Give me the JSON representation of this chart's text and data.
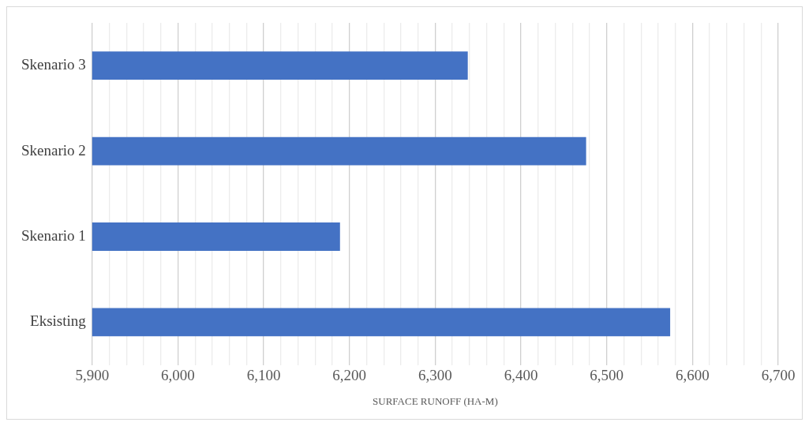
{
  "chart_data": {
    "type": "bar",
    "orientation": "horizontal",
    "categories": [
      "Skenario 3",
      "Skenario 2",
      "Skenario 1",
      "Eksisting"
    ],
    "values": [
      6338,
      6476,
      6189,
      6574
    ],
    "color": "#4472c4",
    "xlabel": "SURFACE RUNOFF (HA-M)",
    "xlim": [
      5900,
      6700
    ],
    "xticks": [
      {
        "value": 5900,
        "label": "5,900"
      },
      {
        "value": 5920,
        "label": null
      },
      {
        "value": 5940,
        "label": null
      },
      {
        "value": 5960,
        "label": null
      },
      {
        "value": 5980,
        "label": null
      },
      {
        "value": 6000,
        "label": "6,000"
      },
      {
        "value": 6020,
        "label": null
      },
      {
        "value": 6040,
        "label": null
      },
      {
        "value": 6060,
        "label": null
      },
      {
        "value": 6080,
        "label": null
      },
      {
        "value": 6100,
        "label": "6,100"
      },
      {
        "value": 6120,
        "label": null
      },
      {
        "value": 6140,
        "label": null
      },
      {
        "value": 6160,
        "label": null
      },
      {
        "value": 6180,
        "label": null
      },
      {
        "value": 6200,
        "label": "6,200"
      },
      {
        "value": 6220,
        "label": null
      },
      {
        "value": 6240,
        "label": null
      },
      {
        "value": 6260,
        "label": null
      },
      {
        "value": 6280,
        "label": null
      },
      {
        "value": 6300,
        "label": "6,300"
      },
      {
        "value": 6320,
        "label": null
      },
      {
        "value": 6340,
        "label": null
      },
      {
        "value": 6360,
        "label": null
      },
      {
        "value": 6380,
        "label": null
      },
      {
        "value": 6400,
        "label": "6,400"
      },
      {
        "value": 6420,
        "label": null
      },
      {
        "value": 6440,
        "label": null
      },
      {
        "value": 6460,
        "label": null
      },
      {
        "value": 6480,
        "label": null
      },
      {
        "value": 6500,
        "label": "6,500"
      },
      {
        "value": 6520,
        "label": null
      },
      {
        "value": 6540,
        "label": null
      },
      {
        "value": 6560,
        "label": null
      },
      {
        "value": 6580,
        "label": null
      },
      {
        "value": 6600,
        "label": "6,600"
      },
      {
        "value": 6620,
        "label": null
      },
      {
        "value": 6640,
        "label": null
      },
      {
        "value": 6660,
        "label": null
      },
      {
        "value": 6680,
        "label": null
      },
      {
        "value": 6700,
        "label": "6,700"
      }
    ],
    "grid": "x",
    "legend": false
  }
}
